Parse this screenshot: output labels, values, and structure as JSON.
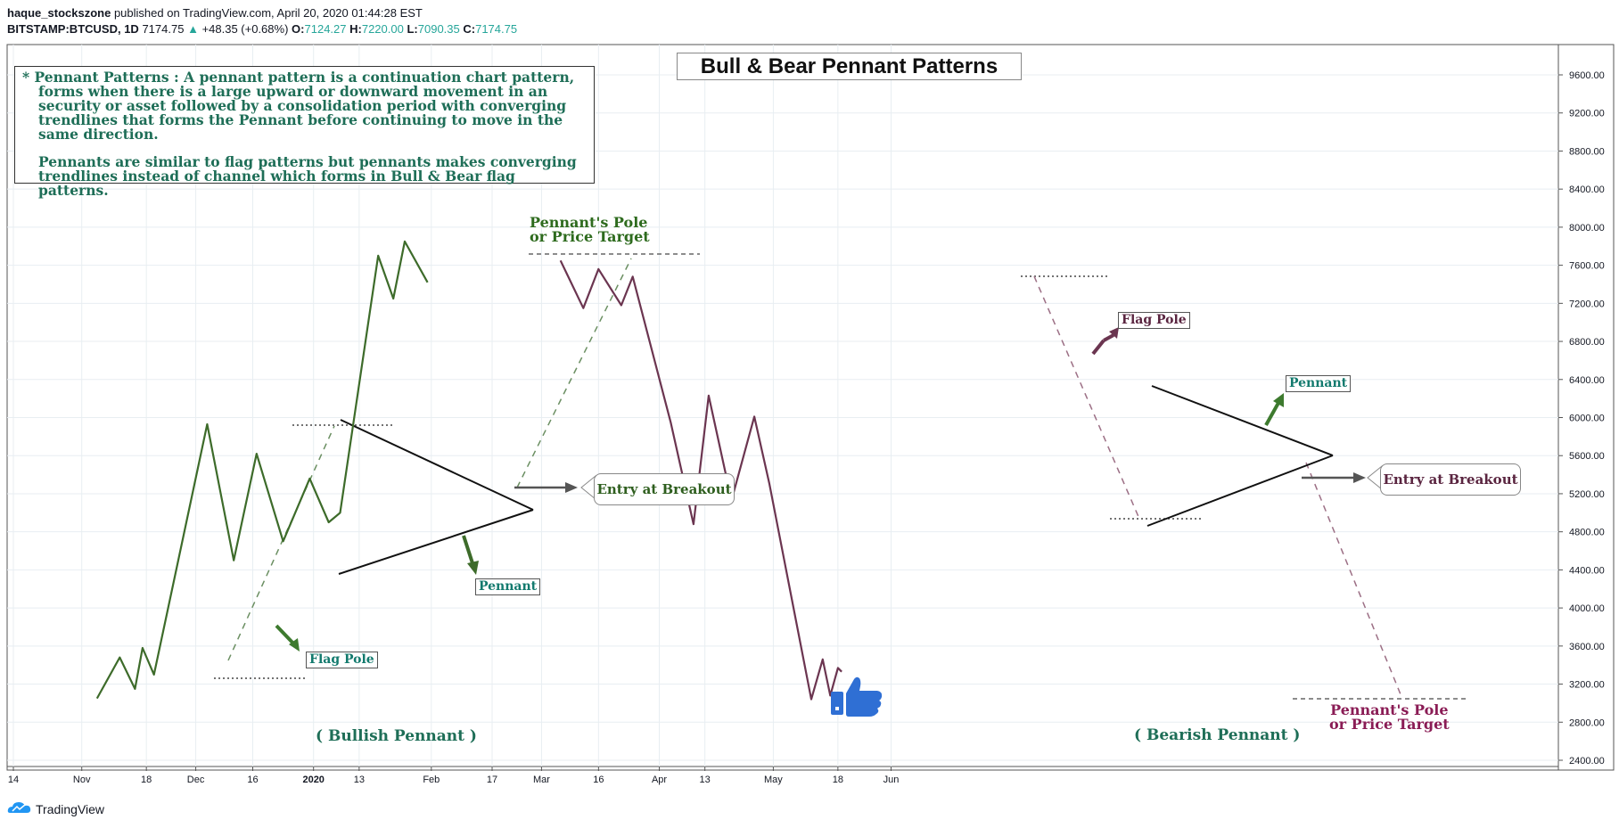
{
  "header": {
    "author": "haque_stockszone",
    "published": " published on TradingView.com, April 20, 2020 01:44:28 EST",
    "symbol": "BITSTAMP:BTCUSD, 1D",
    "price": "7174.75",
    "change": "+48.35 (+0.68%)",
    "o_label": "O:",
    "o_value": "7124.27",
    "h_label": "H:",
    "h_value": "7220.00",
    "l_label": "L:",
    "l_value": "7090.35",
    "c_label": "C:",
    "c_value": "7174.75"
  },
  "title": "Bull & Bear Pennant Patterns",
  "info": {
    "para1": "* Pennant Patterns : A pennant pattern is a continuation chart pattern, forms when there is a large upward or downward movement in an security or asset followed by a consolidation period with converging trendlines that forms the Pennant before continuing to move in the same direction.",
    "para2": "Pennants are similar to flag patterns but pennants makes converging trendlines instead of channel which forms in Bull & Bear flag patterns."
  },
  "labels": {
    "bull_flag_pole": "Flag Pole",
    "bull_pennant": "Pennant",
    "bull_entry": "Entry at Breakout",
    "bull_target_1": "Pennant's Pole",
    "bull_target_2": "or Price Target",
    "bull_caption": "( Bullish Pennant )",
    "bear_flag_pole": "Flag Pole",
    "bear_pennant": "Pennant",
    "bear_entry": "Entry at Breakout",
    "bear_target_1": "Pennant's Pole",
    "bear_target_2": "or Price Target",
    "bear_caption": "( Bearish Pennant )"
  },
  "footer": {
    "brand": "TradingView"
  },
  "colors": {
    "bull": "#3d6b2a",
    "bull_text": "#2e6b1e",
    "bear": "#6b3550",
    "bear_text": "#8a1c55",
    "teal_text": "#137a6e",
    "axis_text": "#131722",
    "grid": "#e8eef2",
    "thumb": "#2f6fd4"
  },
  "chart_data": {
    "type": "line",
    "y_axis": {
      "ticks": [
        "9600.00",
        "9200.00",
        "8800.00",
        "8400.00",
        "8000.00",
        "7600.00",
        "7200.00",
        "6800.00",
        "6400.00",
        "6000.00",
        "5600.00",
        "5200.00",
        "4800.00",
        "4400.00",
        "4000.00",
        "3600.00",
        "3200.00",
        "2800.00",
        "2400.00"
      ],
      "range": [
        2400,
        9600
      ]
    },
    "x_axis": {
      "ticks": [
        "14",
        "Nov",
        "18",
        "Dec",
        "16",
        "2020",
        "13",
        "Feb",
        "17",
        "Mar",
        "16",
        "Apr",
        "13",
        "May",
        "18",
        "Jun"
      ]
    },
    "grid": true,
    "series": [
      {
        "x": [
          "Nov 5",
          "Nov 11",
          "Nov 15",
          "Nov 17",
          "Nov 20",
          "Dec 4",
          "Dec 11",
          "Dec 17",
          "Dec 24",
          "Dec 31",
          "Jan 5",
          "Jan 8",
          "Jan 18",
          "Jan 22",
          "Jan 25",
          "Jan 31"
        ],
        "values": [
          3050,
          3480,
          3150,
          3580,
          3300,
          5930,
          4500,
          5620,
          4700,
          5360,
          4900,
          5000,
          7700,
          7250,
          7850,
          7420
        ]
      },
      {
        "x": [
          "Mar 6",
          "Mar 12",
          "Mar 16",
          "Mar 22",
          "Mar 25",
          "Apr 4",
          "Apr 10",
          "Apr 14",
          "Apr 20",
          "Apr 26",
          "Apr 30",
          "May 11",
          "May 14",
          "May 16",
          "May 18",
          "May 19"
        ],
        "values": [
          7650,
          7150,
          7560,
          7180,
          7480,
          5950,
          4880,
          6230,
          5130,
          6010,
          5300,
          3040,
          3460,
          3080,
          3370,
          3330
        ]
      }
    ]
  }
}
